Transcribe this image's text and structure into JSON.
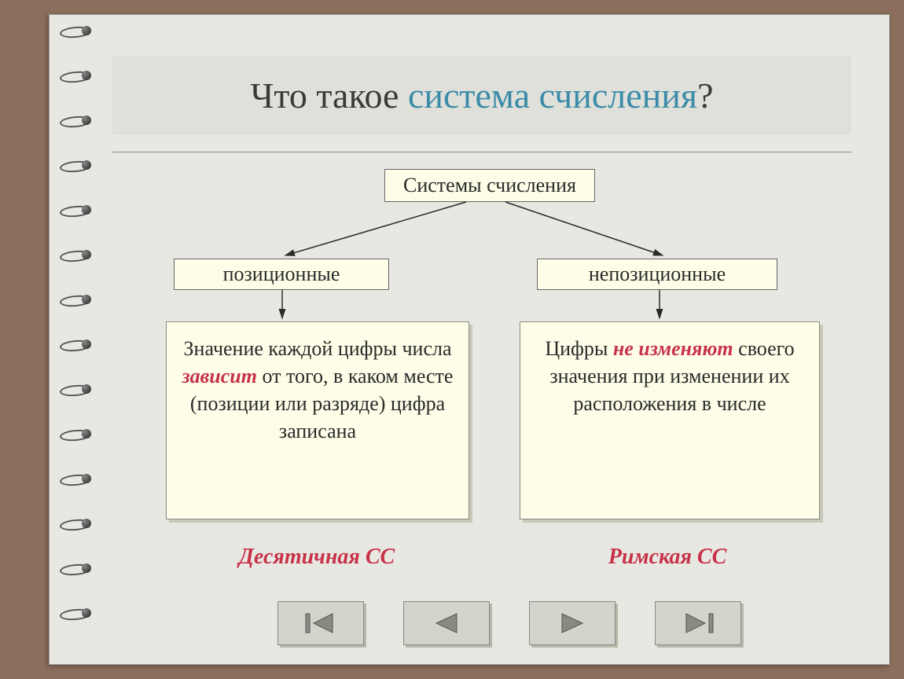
{
  "title": {
    "prefix": "Что такое ",
    "accent": "система счисления",
    "suffix": "?",
    "prefix_color": "#3a3a3a",
    "accent_color": "#3a8ba8",
    "fontsize": 46,
    "background_color": "#e0e0da"
  },
  "diagram": {
    "type": "tree",
    "background_color": "#e8e8e3",
    "node_fill": "#fdfde8",
    "node_border": "#666666",
    "arrow_color": "#2a2a2a",
    "root": {
      "label": "Системы счисления"
    },
    "branches": [
      {
        "label": "позиционные",
        "description": {
          "parts": [
            {
              "text": "Значение каждой цифры числа ",
              "em": false
            },
            {
              "text": "зависит",
              "em": true
            },
            {
              "text": " от того,  в каком месте (позиции или разряде) цифра записана",
              "em": false
            }
          ]
        },
        "footer": "Десятичная СС"
      },
      {
        "label": "непозиционные",
        "description": {
          "parts": [
            {
              "text": "Цифры ",
              "em": false
            },
            {
              "text": "не изменяют",
              "em": true
            },
            {
              "text": " своего значения при изменении их расположения в числе",
              "em": false
            }
          ]
        },
        "footer": "Римская СС"
      }
    ],
    "emphasis_color": "#c83248",
    "text_color": "#2a2a2a",
    "body_fontsize": 26,
    "footer_fontsize": 28,
    "shadow_color": "#c8c8b8"
  },
  "nav": {
    "buttons": [
      "first",
      "prev",
      "next",
      "last"
    ],
    "button_fill": "#d4d4cc",
    "button_border": "#888888",
    "button_shadow": "#b8b8a8",
    "arrow_fill": "#8a8a82",
    "arrow_stroke": "#555555"
  },
  "page_bg": "#8b6f5c",
  "binding": {
    "ring_count": 14,
    "spacing": 57
  }
}
